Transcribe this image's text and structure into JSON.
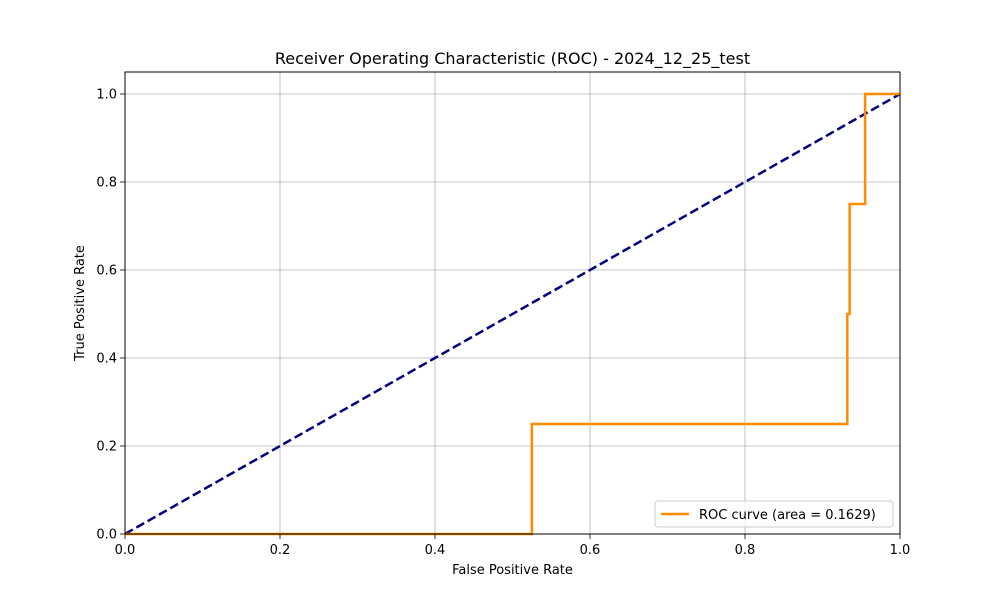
{
  "chart_data": {
    "type": "line",
    "title": "Receiver Operating Characteristic (ROC) - 2024_12_25_test",
    "xlabel": "False Positive Rate",
    "ylabel": "True Positive Rate",
    "xlim": [
      0.0,
      1.0
    ],
    "ylim": [
      0.0,
      1.05
    ],
    "x_ticks": [
      0.0,
      0.2,
      0.4,
      0.6,
      0.8,
      1.0
    ],
    "y_ticks": [
      0.0,
      0.2,
      0.4,
      0.6,
      0.8,
      1.0
    ],
    "x_tick_labels": [
      "0.0",
      "0.2",
      "0.4",
      "0.6",
      "0.8",
      "1.0"
    ],
    "y_tick_labels": [
      "0.0",
      "0.2",
      "0.4",
      "0.6",
      "0.8",
      "1.0"
    ],
    "grid": true,
    "legend_position": "lower-right",
    "series": [
      {
        "name": "ROC curve (area = 0.1629)",
        "color": "#ff8c00",
        "style": "solid",
        "x": [
          0.0,
          0.525,
          0.525,
          0.932,
          0.932,
          0.935,
          0.935,
          0.955,
          0.955,
          1.0
        ],
        "y": [
          0.0,
          0.0,
          0.25,
          0.25,
          0.5,
          0.5,
          0.75,
          0.75,
          1.0,
          1.0
        ]
      },
      {
        "color": "#000080",
        "style": "dashed",
        "x": [
          0.0,
          1.0
        ],
        "y": [
          0.0,
          1.0
        ]
      }
    ]
  }
}
